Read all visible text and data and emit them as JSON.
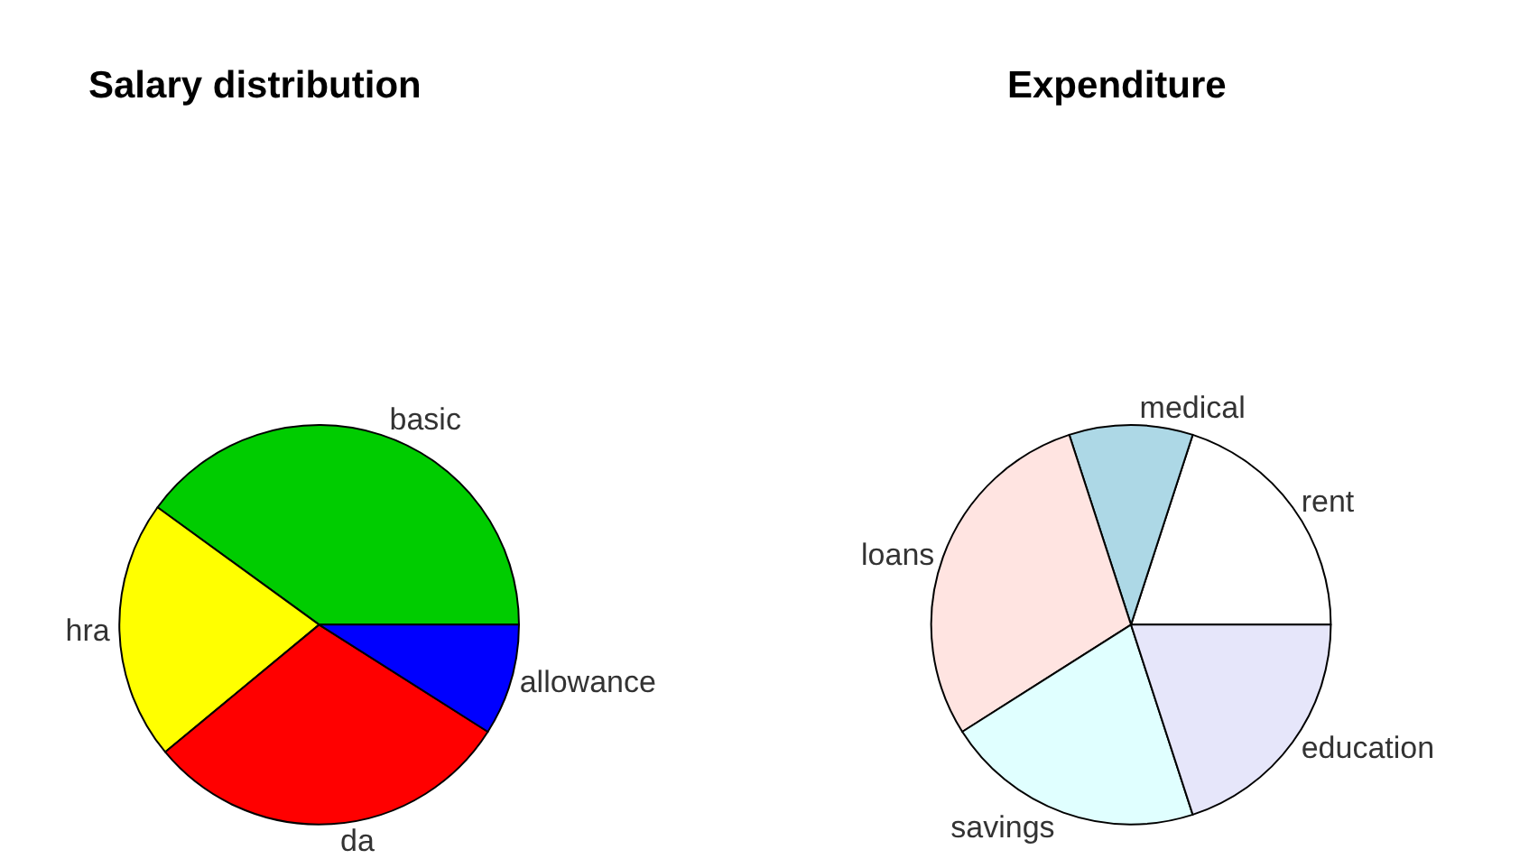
{
  "chart_data": [
    {
      "type": "pie",
      "title": "Salary distribution",
      "categories": [
        "basic",
        "hra",
        "da",
        "allowance"
      ],
      "values": [
        40,
        21,
        30,
        9
      ],
      "colors": [
        "#00cc00",
        "#ffff00",
        "#ff0000",
        "#0000ff"
      ]
    },
    {
      "type": "pie",
      "title": "Expenditure",
      "categories": [
        "rent",
        "medical",
        "loans",
        "savings",
        "education"
      ],
      "values": [
        20,
        10,
        29,
        21,
        20
      ],
      "colors": [
        "#ffffff",
        "#add8e6",
        "#ffe4e1",
        "#e0ffff",
        "#e6e6fa"
      ]
    }
  ]
}
